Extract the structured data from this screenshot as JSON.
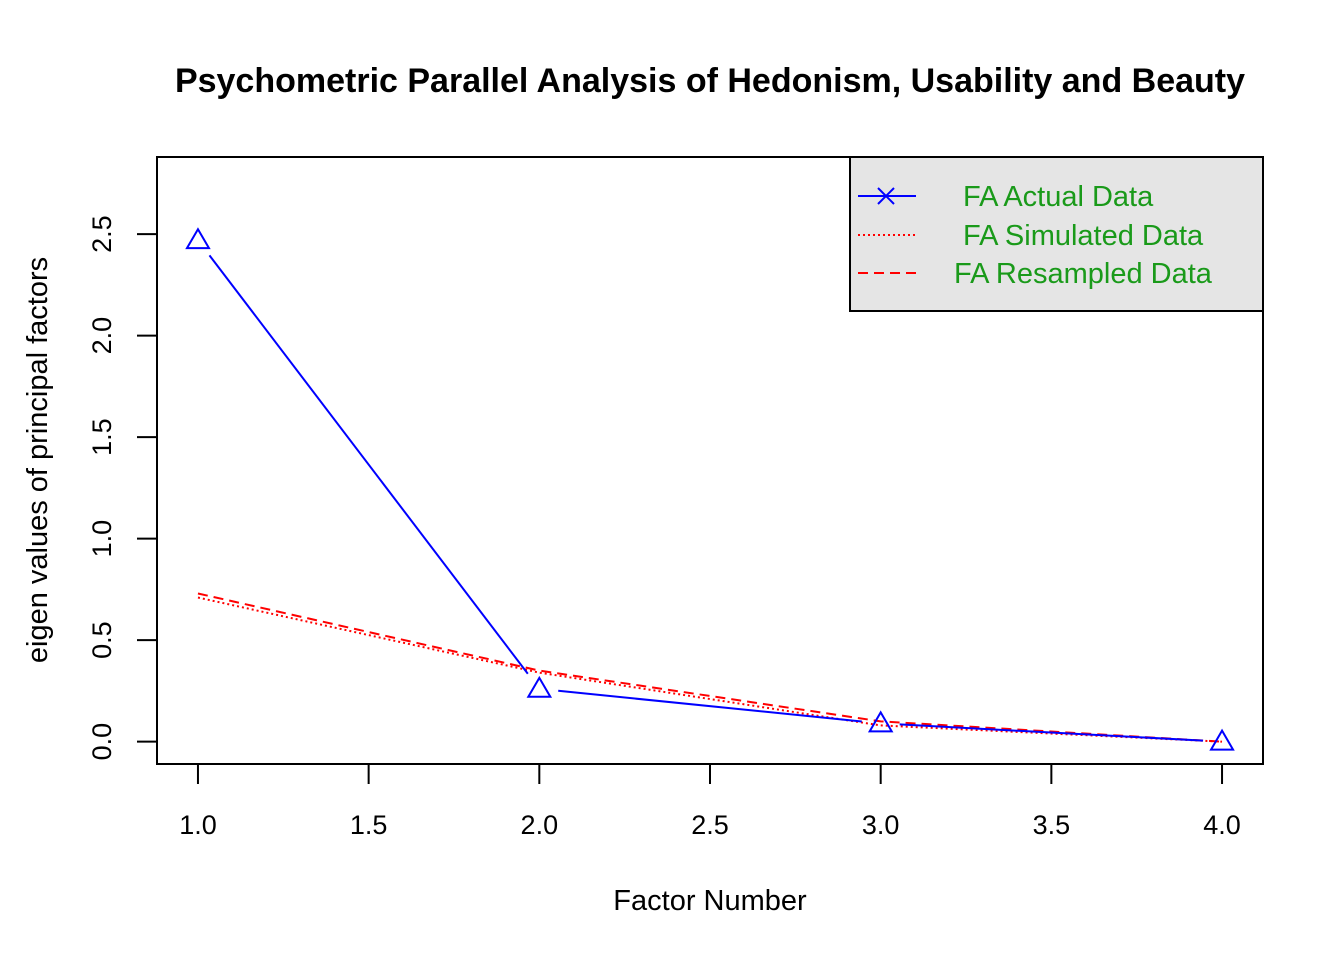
{
  "chart_data": {
    "type": "line",
    "title": "Psychometric Parallel Analysis of Hedonism, Usability and Beauty",
    "xlabel": "Factor Number",
    "ylabel": "eigen values of principal factors",
    "xlim": [
      0.88,
      4.12
    ],
    "ylim": [
      -0.11,
      2.88
    ],
    "x_ticks": [
      "1.0",
      "1.5",
      "2.0",
      "2.5",
      "3.0",
      "3.5",
      "4.0"
    ],
    "x_tick_values": [
      1.0,
      1.5,
      2.0,
      2.5,
      3.0,
      3.5,
      4.0
    ],
    "y_ticks": [
      "0.0",
      "0.5",
      "1.0",
      "1.5",
      "2.0",
      "2.5"
    ],
    "y_tick_values": [
      0.0,
      0.5,
      1.0,
      1.5,
      2.0,
      2.5
    ],
    "x": [
      1,
      2,
      3,
      4
    ],
    "series": [
      {
        "name": "FA  Actual Data",
        "values": [
          2.47,
          0.26,
          0.09,
          0.0
        ],
        "color": "#0000ff",
        "line": "solid",
        "marker": "triangle"
      },
      {
        "name": "FA  Simulated Data",
        "values": [
          0.71,
          0.34,
          0.08,
          0.0
        ],
        "color": "#ff0000",
        "line": "dotted"
      },
      {
        "name": "FA  Resampled Data",
        "values": [
          0.73,
          0.35,
          0.1,
          0.0
        ],
        "color": "#ff0000",
        "line": "dashed"
      }
    ],
    "legend": {
      "position": "top-right",
      "background": "#e5e5e5"
    },
    "grid": false
  }
}
